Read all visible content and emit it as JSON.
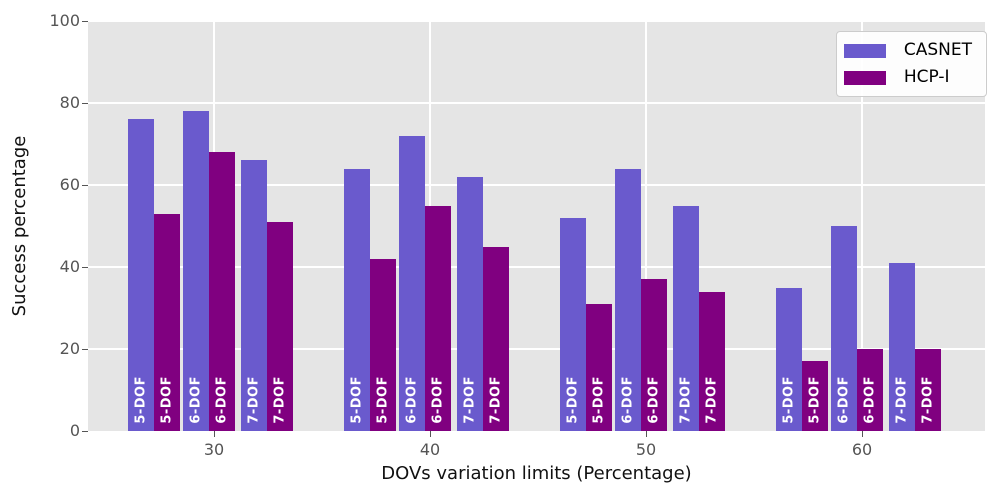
{
  "axes": {
    "xlabel": "DOVs variation limits (Percentage)",
    "ylabel": "Success percentage"
  },
  "legend": {
    "items": [
      {
        "label": "CASNET",
        "color": "#6a5acd"
      },
      {
        "label": "HCP-I",
        "color": "#800080"
      }
    ]
  },
  "chart_data": {
    "type": "bar",
    "title": "",
    "xlabel": "DOVs variation limits (Percentage)",
    "ylabel": "Success percentage",
    "ylim": [
      0,
      100
    ],
    "yticks": [
      0,
      20,
      40,
      60,
      80,
      100
    ],
    "categories": [
      "30",
      "40",
      "50",
      "60"
    ],
    "grid": true,
    "legend_position": "upper right",
    "plot_bg": "#e5e5e5",
    "series_colors": {
      "CASNET": "#6a5acd",
      "HCP-I": "#800080"
    },
    "groups": [
      {
        "category": "30",
        "bars": [
          {
            "label": "5-DOF",
            "series": "CASNET",
            "value": 76
          },
          {
            "label": "5-DOF",
            "series": "HCP-I",
            "value": 53
          },
          {
            "label": "6-DOF",
            "series": "CASNET",
            "value": 78
          },
          {
            "label": "6-DOF",
            "series": "HCP-I",
            "value": 68
          },
          {
            "label": "7-DOF",
            "series": "CASNET",
            "value": 66
          },
          {
            "label": "7-DOF",
            "series": "HCP-I",
            "value": 51
          }
        ]
      },
      {
        "category": "40",
        "bars": [
          {
            "label": "5-DOF",
            "series": "CASNET",
            "value": 64
          },
          {
            "label": "5-DOF",
            "series": "HCP-I",
            "value": 42
          },
          {
            "label": "6-DOF",
            "series": "CASNET",
            "value": 72
          },
          {
            "label": "6-DOF",
            "series": "HCP-I",
            "value": 55
          },
          {
            "label": "7-DOF",
            "series": "CASNET",
            "value": 62
          },
          {
            "label": "7-DOF",
            "series": "HCP-I",
            "value": 45
          }
        ]
      },
      {
        "category": "50",
        "bars": [
          {
            "label": "5-DOF",
            "series": "CASNET",
            "value": 52
          },
          {
            "label": "5-DOF",
            "series": "HCP-I",
            "value": 31
          },
          {
            "label": "6-DOF",
            "series": "CASNET",
            "value": 64
          },
          {
            "label": "6-DOF",
            "series": "HCP-I",
            "value": 37
          },
          {
            "label": "7-DOF",
            "series": "CASNET",
            "value": 55
          },
          {
            "label": "7-DOF",
            "series": "HCP-I",
            "value": 34
          }
        ]
      },
      {
        "category": "60",
        "bars": [
          {
            "label": "5-DOF",
            "series": "CASNET",
            "value": 35
          },
          {
            "label": "5-DOF",
            "series": "HCP-I",
            "value": 17
          },
          {
            "label": "6-DOF",
            "series": "CASNET",
            "value": 50
          },
          {
            "label": "6-DOF",
            "series": "HCP-I",
            "value": 20
          },
          {
            "label": "7-DOF",
            "series": "CASNET",
            "value": 41
          },
          {
            "label": "7-DOF",
            "series": "HCP-I",
            "value": 20
          }
        ]
      }
    ]
  }
}
